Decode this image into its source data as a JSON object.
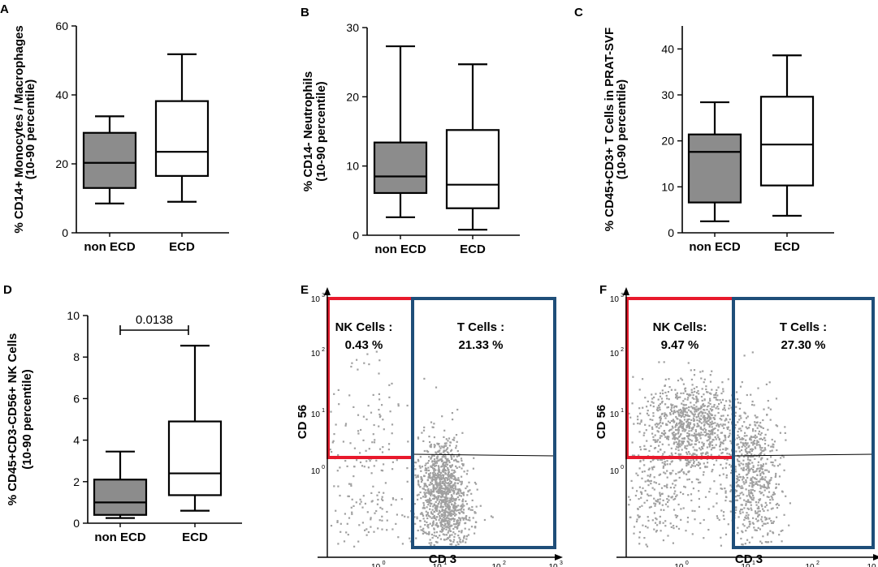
{
  "chart_data": [
    {
      "panel": "A",
      "type": "box",
      "ylabel_line1": "% CD14+ Monocytes / Macrophages",
      "ylabel_line2": "(10-90 percentile)",
      "ylim": [
        0,
        60
      ],
      "yticks": [
        0,
        20,
        40,
        60
      ],
      "categories": [
        "non ECD",
        "ECD"
      ],
      "boxes": [
        {
          "name": "non ECD",
          "p10": 8.5,
          "q1": 13,
          "median": 20.3,
          "q3": 29,
          "p90": 33.8,
          "fill": "#8c8c8c"
        },
        {
          "name": "ECD",
          "p10": 9,
          "q1": 16.5,
          "median": 23.5,
          "q3": 38.2,
          "p90": 51.8,
          "fill": "#ffffff"
        }
      ]
    },
    {
      "panel": "B",
      "type": "box",
      "ylabel_line1": "% CD14- Neutrophils",
      "ylabel_line2": "(10-90 percentile)",
      "ylim": [
        0,
        30
      ],
      "yticks": [
        0,
        10,
        20,
        30
      ],
      "categories": [
        "non ECD",
        "ECD"
      ],
      "boxes": [
        {
          "name": "non ECD",
          "p10": 2.6,
          "q1": 6.1,
          "median": 8.5,
          "q3": 13.4,
          "p90": 27.3,
          "fill": "#8c8c8c"
        },
        {
          "name": "ECD",
          "p10": 0.8,
          "q1": 3.9,
          "median": 7.3,
          "q3": 15.2,
          "p90": 24.7,
          "fill": "#ffffff"
        }
      ]
    },
    {
      "panel": "C",
      "type": "box",
      "ylabel_line1": "% CD45+CD3+ T Cells  in PRAT-SVF",
      "ylabel_line2": "(10-90 percentile)",
      "ylim": [
        0,
        45
      ],
      "yticks": [
        0,
        10,
        20,
        30,
        40
      ],
      "categories": [
        "non ECD",
        "ECD"
      ],
      "boxes": [
        {
          "name": "non ECD",
          "p10": 2.5,
          "q1": 6.6,
          "median": 17.6,
          "q3": 21.4,
          "p90": 28.4,
          "fill": "#8c8c8c"
        },
        {
          "name": "ECD",
          "p10": 3.7,
          "q1": 10.3,
          "median": 19.2,
          "q3": 29.6,
          "p90": 38.6,
          "fill": "#ffffff"
        }
      ]
    },
    {
      "panel": "D",
      "type": "box",
      "ylabel_line1": "% CD45+CD3-CD56+ NK Cells",
      "ylabel_line2": "(10-90 percentile)",
      "ylim": [
        0,
        10
      ],
      "yticks": [
        0,
        2,
        4,
        6,
        8,
        10
      ],
      "categories": [
        "non ECD",
        "ECD"
      ],
      "pvalue": "0.0138",
      "boxes": [
        {
          "name": "non ECD",
          "p10": 0.25,
          "q1": 0.4,
          "median": 1.0,
          "q3": 2.1,
          "p90": 3.45,
          "fill": "#8c8c8c"
        },
        {
          "name": "ECD",
          "p10": 0.6,
          "q1": 1.35,
          "median": 2.4,
          "q3": 4.9,
          "p90": 8.55,
          "fill": "#ffffff"
        }
      ]
    },
    {
      "panel": "E",
      "type": "scatter",
      "xlabel": "CD 3",
      "ylabel": "CD 56",
      "xscale": "log",
      "yscale": "log",
      "nk_label": "NK Cells :",
      "nk_value": "0.43 %",
      "t_label": "T Cells :",
      "t_value": "21.33 %",
      "nk_gate_color": "#e8192c",
      "t_gate_color": "#1f4e79",
      "dot_color": "#a0a0a0"
    },
    {
      "panel": "F",
      "type": "scatter",
      "xlabel": "CD 3",
      "ylabel": "CD 56",
      "xscale": "log",
      "yscale": "log",
      "nk_label": "NK Cells:",
      "nk_value": "9.47 %",
      "t_label": "T Cells :",
      "t_value": "27.30 %",
      "nk_gate_color": "#e8192c",
      "t_gate_color": "#1f4e79",
      "dot_color": "#a0a0a0"
    }
  ],
  "log_ticks": {
    "base": "10",
    "exponents": [
      "0",
      "1",
      "2",
      "3"
    ]
  }
}
